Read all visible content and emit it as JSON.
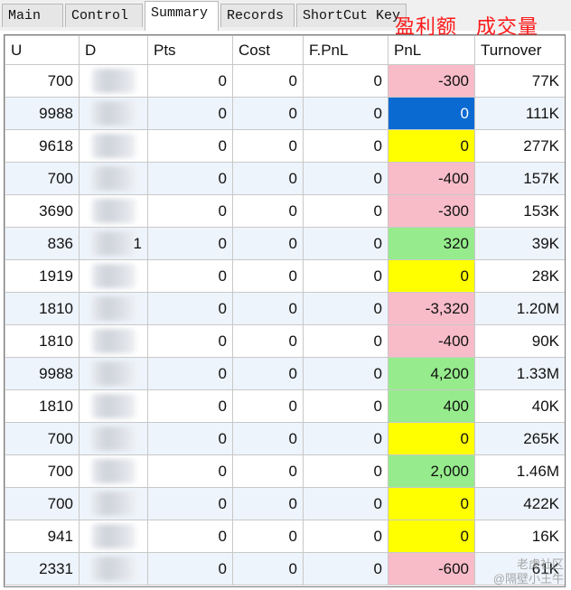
{
  "tabs": [
    {
      "label": "Main",
      "active": false
    },
    {
      "label": "Control",
      "active": false
    },
    {
      "label": "Summary",
      "active": true
    },
    {
      "label": "Records",
      "active": false
    },
    {
      "label": "ShortCut Key",
      "active": false
    }
  ],
  "annotations": {
    "pnl_cn": "盈利额",
    "turnover_cn": "成交量",
    "color": "#ff1a1a"
  },
  "columns": [
    "U",
    "D",
    "Pts",
    "Cost",
    "F.PnL",
    "PnL",
    "Turnover"
  ],
  "pnl_colors": {
    "red": "#f8bcc8",
    "yellow": "#ffff00",
    "green": "#96ec8c",
    "blue": "#0a6ad2"
  },
  "rows": [
    {
      "u": "700",
      "d": "",
      "pts": "0",
      "cost": "0",
      "fpnl": "0",
      "pnl": "-300",
      "pnl_color": "red",
      "turnover": "77K"
    },
    {
      "u": "9988",
      "d": "",
      "pts": "0",
      "cost": "0",
      "fpnl": "0",
      "pnl": "0",
      "pnl_color": "blue",
      "turnover": "111K"
    },
    {
      "u": "9618",
      "d": "",
      "pts": "0",
      "cost": "0",
      "fpnl": "0",
      "pnl": "0",
      "pnl_color": "yellow",
      "turnover": "277K"
    },
    {
      "u": "700",
      "d": "",
      "pts": "0",
      "cost": "0",
      "fpnl": "0",
      "pnl": "-400",
      "pnl_color": "red",
      "turnover": "157K"
    },
    {
      "u": "3690",
      "d": "",
      "pts": "0",
      "cost": "0",
      "fpnl": "0",
      "pnl": "-300",
      "pnl_color": "red",
      "turnover": "153K"
    },
    {
      "u": "836",
      "d": "1",
      "pts": "0",
      "cost": "0",
      "fpnl": "0",
      "pnl": "320",
      "pnl_color": "green",
      "turnover": "39K"
    },
    {
      "u": "1919",
      "d": "",
      "pts": "0",
      "cost": "0",
      "fpnl": "0",
      "pnl": "0",
      "pnl_color": "yellow",
      "turnover": "28K"
    },
    {
      "u": "1810",
      "d": "",
      "pts": "0",
      "cost": "0",
      "fpnl": "0",
      "pnl": "-3,320",
      "pnl_color": "red",
      "turnover": "1.20M"
    },
    {
      "u": "1810",
      "d": "",
      "pts": "0",
      "cost": "0",
      "fpnl": "0",
      "pnl": "-400",
      "pnl_color": "red",
      "turnover": "90K"
    },
    {
      "u": "9988",
      "d": "",
      "pts": "0",
      "cost": "0",
      "fpnl": "0",
      "pnl": "4,200",
      "pnl_color": "green",
      "turnover": "1.33M"
    },
    {
      "u": "1810",
      "d": "",
      "pts": "0",
      "cost": "0",
      "fpnl": "0",
      "pnl": "400",
      "pnl_color": "green",
      "turnover": "40K"
    },
    {
      "u": "700",
      "d": "",
      "pts": "0",
      "cost": "0",
      "fpnl": "0",
      "pnl": "0",
      "pnl_color": "yellow",
      "turnover": "265K"
    },
    {
      "u": "700",
      "d": "",
      "pts": "0",
      "cost": "0",
      "fpnl": "0",
      "pnl": "2,000",
      "pnl_color": "green",
      "turnover": "1.46M"
    },
    {
      "u": "700",
      "d": "",
      "pts": "0",
      "cost": "0",
      "fpnl": "0",
      "pnl": "0",
      "pnl_color": "yellow",
      "turnover": "422K"
    },
    {
      "u": "941",
      "d": "",
      "pts": "0",
      "cost": "0",
      "fpnl": "0",
      "pnl": "0",
      "pnl_color": "yellow",
      "turnover": "16K"
    },
    {
      "u": "2331",
      "d": "",
      "pts": "0",
      "cost": "0",
      "fpnl": "0",
      "pnl": "-600",
      "pnl_color": "red",
      "turnover": "61K"
    }
  ],
  "watermark": {
    "line1": "老虎社区",
    "line2": "@隔壁小王牛"
  }
}
